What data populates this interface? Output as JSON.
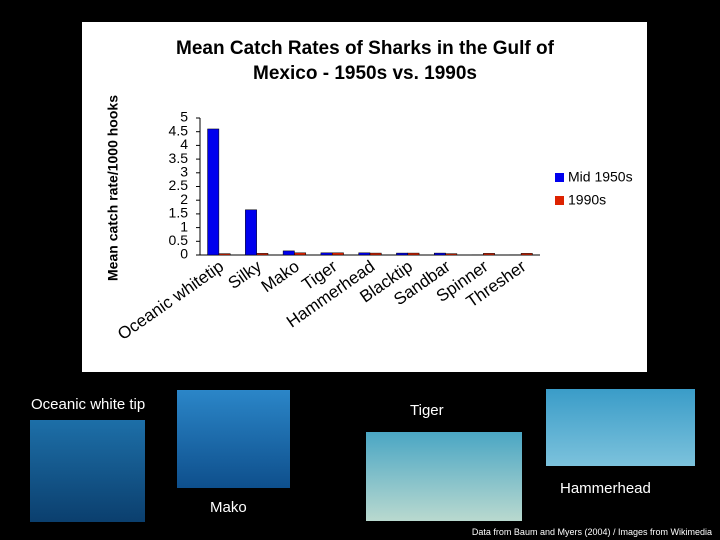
{
  "chart_data": {
    "type": "bar",
    "title": "Mean Catch Rates of Sharks in the Gulf of Mexico - 1950s vs. 1990s",
    "y_label": "Mean catch rate/1000 hooks",
    "categories": [
      "Oceanic whitetip",
      "Silky",
      "Mako",
      "Tiger",
      "Hammerhead",
      "Blacktip",
      "Sandbar",
      "Spinner",
      "Thresher"
    ],
    "series": [
      {
        "name": "Mid 1950s",
        "color": "#0000ee",
        "values": [
          4.6,
          1.65,
          0.15,
          0.08,
          0.08,
          0.07,
          0.07,
          0.01,
          0.01
        ]
      },
      {
        "name": "1990s",
        "color": "#dd2200",
        "values": [
          0.05,
          0.06,
          0.08,
          0.08,
          0.07,
          0.07,
          0.05,
          0.06,
          0.06
        ]
      }
    ],
    "ylim": [
      0,
      5
    ],
    "yticks": [
      0,
      0.5,
      1,
      1.5,
      2,
      2.5,
      3,
      3.5,
      4,
      4.5,
      5
    ],
    "grid": false,
    "legend": "right"
  },
  "captions": [
    "Oceanic white tip",
    "Tiger",
    "Mako",
    "Hammerhead"
  ],
  "credit": "Data from Baum and Myers (2004) / Images from Wikimedia"
}
